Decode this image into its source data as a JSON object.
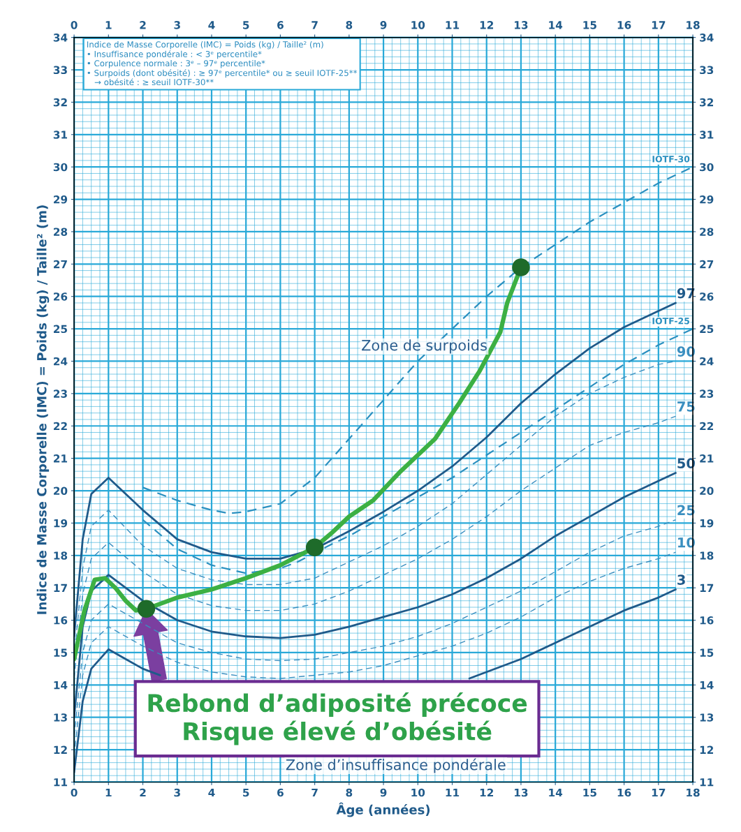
{
  "chart_data": {
    "type": "line",
    "xlabel": "Âge (années)",
    "ylabel": "Indice de Masse Corporelle (IMC) = Poids (kg) / Taille² (m)",
    "xlim": [
      0,
      18
    ],
    "xticks": [
      0,
      {
        "value": 0.25,
        "label": null
      },
      {
        "value": 0.5,
        "label": null
      },
      {
        "value": 0.75,
        "label": null
      },
      1,
      {
        "value": 1.25,
        "label": null
      },
      {
        "value": 1.5,
        "label": null
      },
      {
        "value": 1.75,
        "label": null
      },
      2,
      {
        "value": 2.25,
        "label": null
      },
      {
        "value": 2.5,
        "label": null
      },
      {
        "value": 2.75,
        "label": null
      },
      3,
      {
        "value": 3.25,
        "label": null
      },
      {
        "value": 3.5,
        "label": null
      },
      {
        "value": 3.75,
        "label": null
      },
      4,
      {
        "value": 4.25,
        "label": null
      },
      {
        "value": 4.5,
        "label": null
      },
      {
        "value": 4.75,
        "label": null
      },
      5,
      {
        "value": 5.25,
        "label": null
      },
      {
        "value": 5.5,
        "label": null
      },
      {
        "value": 5.75,
        "label": null
      },
      6,
      {
        "value": 6.25,
        "label": null
      },
      {
        "value": 6.5,
        "label": null
      },
      {
        "value": 6.75,
        "label": null
      },
      7,
      {
        "value": 7.25,
        "label": null
      },
      {
        "value": 7.5,
        "label": null
      },
      {
        "value": 7.75,
        "label": null
      },
      8,
      {
        "value": 8.25,
        "label": null
      },
      {
        "value": 8.5,
        "label": null
      },
      {
        "value": 8.75,
        "label": null
      },
      9,
      {
        "value": 9.25,
        "label": null
      },
      {
        "value": 9.5,
        "label": null
      },
      {
        "value": 9.75,
        "label": null
      },
      10,
      {
        "value": 10.25,
        "label": null
      },
      {
        "value": 10.5,
        "label": null
      },
      {
        "value": 10.75,
        "label": null
      },
      11,
      {
        "value": 11.25,
        "label": null
      },
      {
        "value": 11.5,
        "label": null
      },
      {
        "value": 11.75,
        "label": null
      },
      12,
      {
        "value": 12.25,
        "label": null
      },
      {
        "value": 12.5,
        "label": null
      },
      {
        "value": 12.75,
        "label": null
      },
      13,
      {
        "value": 13.25,
        "label": null
      },
      {
        "value": 13.5,
        "label": null
      },
      {
        "value": 13.75,
        "label": null
      },
      14,
      {
        "value": 14.25,
        "label": null
      },
      {
        "value": 14.5,
        "label": null
      },
      {
        "value": 14.75,
        "label": null
      },
      15,
      {
        "value": 15.25,
        "label": null
      },
      {
        "value": 15.5,
        "label": null
      },
      {
        "value": 15.75,
        "label": null
      },
      16,
      {
        "value": 16.25,
        "label": null
      },
      {
        "value": 16.5,
        "label": null
      },
      {
        "value": 16.75,
        "label": null
      },
      17,
      {
        "value": 17.25,
        "label": null
      },
      {
        "value": 17.5,
        "label": null
      },
      {
        "value": 17.75,
        "label": null
      },
      18
    ],
    "x2lim": [
      0,
      18
    ],
    "x2ticks": [
      0,
      1,
      2,
      3,
      4,
      5,
      6,
      7,
      8,
      9,
      10,
      11,
      12,
      13,
      14,
      15,
      16,
      17,
      18
    ],
    "ylim": [
      11,
      34
    ],
    "yticks": [
      11,
      {
        "value": 11.2,
        "label": null
      },
      {
        "value": 11.4,
        "label": null
      },
      {
        "value": 11.6,
        "label": null
      },
      {
        "value": 11.8,
        "label": null
      },
      12,
      {
        "value": 12.2,
        "label": null
      },
      {
        "value": 12.4,
        "label": null
      },
      {
        "value": 12.6,
        "label": null
      },
      {
        "value": 12.8,
        "label": null
      },
      13,
      {
        "value": 13.2,
        "label": null
      },
      {
        "value": 13.4,
        "label": null
      },
      {
        "value": 13.6,
        "label": null
      },
      {
        "value": 13.8,
        "label": null
      },
      14,
      {
        "value": 14.2,
        "label": null
      },
      {
        "value": 14.4,
        "label": null
      },
      {
        "value": 14.6,
        "label": null
      },
      {
        "value": 14.8,
        "label": null
      },
      15,
      {
        "value": 15.2,
        "label": null
      },
      {
        "value": 15.4,
        "label": null
      },
      {
        "value": 15.6,
        "label": null
      },
      {
        "value": 15.8,
        "label": null
      },
      16,
      {
        "value": 16.2,
        "label": null
      },
      {
        "value": 16.4,
        "label": null
      },
      {
        "value": 16.6,
        "label": null
      },
      {
        "value": 16.8,
        "label": null
      },
      17,
      {
        "value": 17.2,
        "label": null
      },
      {
        "value": 17.4,
        "label": null
      },
      {
        "value": 17.6,
        "label": null
      },
      {
        "value": 17.8,
        "label": null
      },
      18,
      {
        "value": 18.2,
        "label": null
      },
      {
        "value": 18.4,
        "label": null
      },
      {
        "value": 18.6,
        "label": null
      },
      {
        "value": 18.8,
        "label": null
      },
      19,
      {
        "value": 19.2,
        "label": null
      },
      {
        "value": 19.4,
        "label": null
      },
      {
        "value": 19.6,
        "label": null
      },
      {
        "value": 19.8,
        "label": null
      },
      20,
      {
        "value": 20.2,
        "label": null
      },
      {
        "value": 20.4,
        "label": null
      },
      {
        "value": 20.6,
        "label": null
      },
      {
        "value": 20.8,
        "label": null
      },
      21,
      {
        "value": 21.2,
        "label": null
      },
      {
        "value": 21.4,
        "label": null
      },
      {
        "value": 21.6,
        "label": null
      },
      {
        "value": 21.8,
        "label": null
      },
      22,
      {
        "value": 22.2,
        "label": null
      },
      {
        "value": 22.4,
        "label": null
      },
      {
        "value": 22.6,
        "label": null
      },
      {
        "value": 22.8,
        "label": null
      },
      23,
      {
        "value": 23.2,
        "label": null
      },
      {
        "value": 23.4,
        "label": null
      },
      {
        "value": 23.6,
        "label": null
      },
      {
        "value": 23.8,
        "label": null
      },
      24,
      {
        "value": 24.2,
        "label": null
      },
      {
        "value": 24.4,
        "label": null
      },
      {
        "value": 24.6,
        "label": null
      },
      {
        "value": 24.8,
        "label": null
      },
      25,
      {
        "value": 25.2,
        "label": null
      },
      {
        "value": 25.4,
        "label": null
      },
      {
        "value": 25.6,
        "label": null
      },
      {
        "value": 25.8,
        "label": null
      },
      26,
      {
        "value": 26.2,
        "label": null
      },
      {
        "value": 26.4,
        "label": null
      },
      {
        "value": 26.6,
        "label": null
      },
      {
        "value": 26.8,
        "label": null
      },
      27,
      {
        "value": 27.2,
        "label": null
      },
      {
        "value": 27.4,
        "label": null
      },
      {
        "value": 27.6,
        "label": null
      },
      {
        "value": 27.8,
        "label": null
      },
      28,
      {
        "value": 28.2,
        "label": null
      },
      {
        "value": 28.4,
        "label": null
      },
      {
        "value": 28.6,
        "label": null
      },
      {
        "value": 28.8,
        "label": null
      },
      29,
      {
        "value": 29.2,
        "label": null
      },
      {
        "value": 29.4,
        "label": null
      },
      {
        "value": 29.6,
        "label": null
      },
      {
        "value": 29.8,
        "label": null
      },
      30,
      {
        "value": 30.2,
        "label": null
      },
      {
        "value": 30.4,
        "label": null
      },
      {
        "value": 30.6,
        "label": null
      },
      {
        "value": 30.8,
        "label": null
      },
      31,
      {
        "value": 31.2,
        "label": null
      },
      {
        "value": 31.4,
        "label": null
      },
      {
        "value": 31.6,
        "label": null
      },
      {
        "value": 31.8,
        "label": null
      },
      32,
      {
        "value": 32.2,
        "label": null
      },
      {
        "value": 32.4,
        "label": null
      },
      {
        "value": 32.6,
        "label": null
      },
      {
        "value": 32.8,
        "label": null
      },
      33,
      {
        "value": 33.2,
        "label": null
      },
      {
        "value": 33.4,
        "label": null
      },
      {
        "value": 33.6,
        "label": null
      },
      {
        "value": 33.8,
        "label": null
      },
      34
    ],
    "y2lim": [
      11,
      34
    ],
    "y2ticks": [
      11,
      12,
      13,
      14,
      15,
      16,
      17,
      18,
      19,
      20,
      21,
      22,
      23,
      24,
      25,
      26,
      27,
      28,
      29,
      30,
      31,
      32,
      33,
      34
    ],
    "grid": true,
    "series": [
      {
        "name": "97",
        "color": "#1f5a8a",
        "line_style": "solid",
        "x": [
          0,
          0.25,
          0.5,
          1,
          2,
          3,
          4,
          5,
          6,
          7,
          8,
          9,
          10,
          11,
          12,
          13,
          14,
          15,
          16,
          17,
          17.5
        ],
        "values": [
          15.5,
          18.5,
          19.9,
          20.4,
          19.4,
          18.5,
          18.1,
          17.9,
          17.9,
          18.2,
          18.75,
          19.35,
          20.0,
          20.75,
          21.65,
          22.7,
          23.6,
          24.4,
          25.05,
          25.55,
          25.8
        ]
      },
      {
        "name": "90",
        "color": "#3a8fc0",
        "line_style": "dashed",
        "x": [
          0,
          0.25,
          0.5,
          1,
          2,
          3,
          4,
          5,
          6,
          7,
          8,
          9,
          10,
          11,
          12,
          13,
          14,
          15,
          16,
          17,
          17.5
        ],
        "values": [
          14.8,
          17.6,
          18.9,
          19.4,
          18.3,
          17.6,
          17.25,
          17.1,
          17.1,
          17.3,
          17.8,
          18.3,
          18.9,
          19.6,
          20.5,
          21.4,
          22.3,
          23.0,
          23.5,
          23.9,
          24.0
        ]
      },
      {
        "name": "75",
        "color": "#3a8fc0",
        "line_style": "dashed",
        "x": [
          0,
          0.25,
          0.5,
          1,
          2,
          3,
          4,
          5,
          6,
          7,
          8,
          9,
          10,
          11,
          12,
          13,
          14,
          15,
          16,
          17,
          17.5
        ],
        "values": [
          14.2,
          16.8,
          17.9,
          18.4,
          17.5,
          16.8,
          16.45,
          16.3,
          16.3,
          16.5,
          16.9,
          17.4,
          17.9,
          18.5,
          19.2,
          20.0,
          20.7,
          21.4,
          21.8,
          22.1,
          22.3
        ]
      },
      {
        "name": "50",
        "color": "#1f5a8a",
        "line_style": "solid",
        "x": [
          0,
          0.25,
          0.5,
          1,
          2,
          3,
          4,
          5,
          6,
          7,
          8,
          9,
          10,
          11,
          12,
          13,
          14,
          15,
          16,
          17,
          17.5
        ],
        "values": [
          13.0,
          15.8,
          16.9,
          17.4,
          16.6,
          16.0,
          15.65,
          15.5,
          15.45,
          15.55,
          15.8,
          16.1,
          16.4,
          16.8,
          17.3,
          17.9,
          18.6,
          19.2,
          19.8,
          20.3,
          20.55
        ]
      },
      {
        "name": "25",
        "color": "#3a8fc0",
        "line_style": "dashed",
        "x": [
          0,
          0.25,
          0.5,
          1,
          2,
          3,
          4,
          5,
          6,
          7,
          8,
          9,
          10,
          11,
          12,
          13,
          14,
          15,
          16,
          17,
          17.5
        ],
        "values": [
          12.4,
          15.0,
          16.0,
          16.5,
          15.9,
          15.3,
          15.0,
          14.8,
          14.75,
          14.8,
          15.0,
          15.2,
          15.5,
          15.9,
          16.4,
          16.9,
          17.5,
          18.1,
          18.6,
          18.9,
          19.1
        ]
      },
      {
        "name": "10",
        "color": "#3a8fc0",
        "line_style": "dashed",
        "x": [
          0,
          0.25,
          0.5,
          1,
          2,
          3,
          4,
          5,
          6,
          7,
          8,
          9,
          10,
          11,
          12,
          13,
          14,
          15,
          16,
          17,
          17.5
        ],
        "values": [
          11.8,
          14.3,
          15.3,
          15.8,
          15.2,
          14.7,
          14.4,
          14.25,
          14.2,
          14.3,
          14.4,
          14.6,
          14.9,
          15.2,
          15.6,
          16.1,
          16.7,
          17.2,
          17.6,
          17.9,
          18.1
        ]
      },
      {
        "name": "3",
        "color": "#1f5a8a",
        "line_style": "solid",
        "x": [
          0,
          0.25,
          0.5,
          1,
          1.5,
          2,
          2.5,
          3,
          11,
          11.5,
          12,
          13,
          14,
          15,
          16,
          17,
          17.5
        ],
        "values": [
          11.3,
          13.5,
          14.5,
          15.1,
          14.8,
          14.5,
          14.3,
          null,
          null,
          14.2,
          14.4,
          14.8,
          15.3,
          15.8,
          16.3,
          16.7,
          16.95
        ]
      },
      {
        "name": "IOTF-30",
        "color": "#2a90c0",
        "line_style": "dashed",
        "x": [
          2,
          3,
          4,
          4.5,
          5,
          6,
          7,
          8,
          9,
          10,
          11,
          12,
          13,
          14,
          15,
          16,
          17,
          18
        ],
        "values": [
          20.1,
          19.7,
          19.4,
          19.3,
          19.35,
          19.6,
          20.4,
          21.6,
          22.8,
          24.0,
          25.0,
          26.0,
          26.9,
          27.6,
          28.3,
          28.9,
          29.5,
          30.0
        ]
      },
      {
        "name": "IOTF-25",
        "color": "#2a90c0",
        "line_style": "dashed",
        "x": [
          2,
          3,
          4,
          5,
          6,
          6.5,
          7.5,
          8,
          9,
          10,
          11,
          12,
          13,
          14,
          15,
          16,
          17,
          18
        ],
        "values": [
          19.1,
          18.2,
          17.7,
          17.45,
          17.6,
          17.8,
          18.35,
          18.6,
          19.2,
          19.8,
          20.4,
          21.1,
          21.8,
          22.5,
          23.2,
          23.9,
          24.5,
          25.0
        ]
      },
      {
        "color": "#3cb043",
        "line_style": "solid",
        "x": [
          0,
          0.3,
          0.6,
          0.9,
          1.2,
          1.5,
          1.8,
          2.1,
          3,
          4,
          5,
          6,
          7,
          7.5,
          8,
          8.7,
          9.5,
          10.5,
          11.2,
          11.8,
          12.4,
          12.6,
          13.0
        ],
        "values": [
          14.8,
          16.3,
          17.25,
          17.3,
          17.0,
          16.6,
          16.3,
          16.35,
          16.7,
          16.95,
          17.3,
          17.7,
          18.25,
          18.7,
          19.2,
          19.7,
          20.6,
          21.6,
          22.7,
          23.7,
          24.9,
          25.8,
          26.9
        ]
      },
      {
        "type": "scatter",
        "marker": "circle",
        "color": "#1e6b2a",
        "x": [
          2.1,
          7,
          13
        ],
        "values": [
          16.35,
          18.25,
          26.9
        ]
      }
    ],
    "annotations": [
      "Indice de Masse Corporelle (IMC) = Poids (kg) / Taille² (m)\n• Insuffisance pondérale : < 3ᵉ percentile*\n• Corpulence normale : 3ᵉ – 97ᵉ percentile*\n• Surpoids (dont obésité) : ≥ 97ᵉ percentile* ou ≥ seuil IOTF-25**\n   → obésité : ≥ seuil IOTF-30**",
      "Zone de surpoids",
      "Zone d’insuffisance pondérale",
      "Rebond d’adiposité précoce\nRisque élevé d’obésité"
    ]
  }
}
